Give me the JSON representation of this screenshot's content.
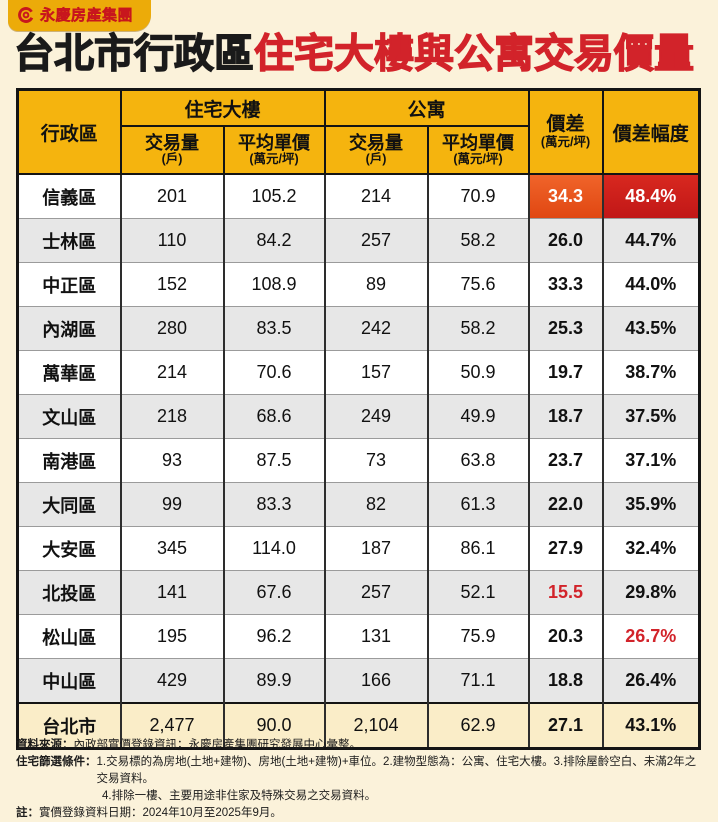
{
  "brand": {
    "logo_text": "永慶房產集團"
  },
  "title": {
    "black_part": "台北市行政區",
    "red_part": "住宅大樓與公寓交易價量"
  },
  "table": {
    "col_headers": {
      "district": "行政區",
      "building_group": "住宅大樓",
      "apartment_group": "公寓",
      "volume_label": "交易量",
      "volume_unit": "(戶)",
      "price_label": "平均單價",
      "price_unit": "(萬元/坪)",
      "diff_label": "價差",
      "diff_unit": "(萬元/坪)",
      "diff_pct_label": "價差幅度"
    },
    "rows": [
      {
        "district": "信義區",
        "building_volume": "201",
        "building_price": "105.2",
        "apartment_volume": "214",
        "apartment_price": "70.9",
        "price_diff": "34.3",
        "diff_pct": "48.4%",
        "diff_highlight": "orange-bg",
        "pct_highlight": "red-bg"
      },
      {
        "district": "士林區",
        "building_volume": "110",
        "building_price": "84.2",
        "apartment_volume": "257",
        "apartment_price": "58.2",
        "price_diff": "26.0",
        "diff_pct": "44.7%"
      },
      {
        "district": "中正區",
        "building_volume": "152",
        "building_price": "108.9",
        "apartment_volume": "89",
        "apartment_price": "75.6",
        "price_diff": "33.3",
        "diff_pct": "44.0%"
      },
      {
        "district": "內湖區",
        "building_volume": "280",
        "building_price": "83.5",
        "apartment_volume": "242",
        "apartment_price": "58.2",
        "price_diff": "25.3",
        "diff_pct": "43.5%"
      },
      {
        "district": "萬華區",
        "building_volume": "214",
        "building_price": "70.6",
        "apartment_volume": "157",
        "apartment_price": "50.9",
        "price_diff": "19.7",
        "diff_pct": "38.7%"
      },
      {
        "district": "文山區",
        "building_volume": "218",
        "building_price": "68.6",
        "apartment_volume": "249",
        "apartment_price": "49.9",
        "price_diff": "18.7",
        "diff_pct": "37.5%"
      },
      {
        "district": "南港區",
        "building_volume": "93",
        "building_price": "87.5",
        "apartment_volume": "73",
        "apartment_price": "63.8",
        "price_diff": "23.7",
        "diff_pct": "37.1%"
      },
      {
        "district": "大同區",
        "building_volume": "99",
        "building_price": "83.3",
        "apartment_volume": "82",
        "apartment_price": "61.3",
        "price_diff": "22.0",
        "diff_pct": "35.9%"
      },
      {
        "district": "大安區",
        "building_volume": "345",
        "building_price": "114.0",
        "apartment_volume": "187",
        "apartment_price": "86.1",
        "price_diff": "27.9",
        "diff_pct": "32.4%"
      },
      {
        "district": "北投區",
        "building_volume": "141",
        "building_price": "67.6",
        "apartment_volume": "257",
        "apartment_price": "52.1",
        "price_diff": "15.5",
        "diff_pct": "29.8%",
        "diff_highlight": "red-text"
      },
      {
        "district": "松山區",
        "building_volume": "195",
        "building_price": "96.2",
        "apartment_volume": "131",
        "apartment_price": "75.9",
        "price_diff": "20.3",
        "diff_pct": "26.7%",
        "pct_highlight": "red-text"
      },
      {
        "district": "中山區",
        "building_volume": "429",
        "building_price": "89.9",
        "apartment_volume": "166",
        "apartment_price": "71.1",
        "price_diff": "18.8",
        "diff_pct": "26.4%"
      },
      {
        "district": "台北市",
        "building_volume": "2,477",
        "building_price": "90.0",
        "apartment_volume": "2,104",
        "apartment_price": "62.9",
        "price_diff": "27.1",
        "diff_pct": "43.1%",
        "is_total": true
      }
    ]
  },
  "notes": [
    {
      "label": "資料來源：",
      "text": "內政部實價登錄資訊；永慶房產集團研究發展中心彙整。"
    },
    {
      "label": "住宅篩選條件：",
      "text": "1.交易標的為房地(土地+建物)、房地(土地+建物)+車位。2.建物型態為：公寓、住宅大樓。3.排除屋齡空白、未滿2年之交易資料。"
    },
    {
      "label": "",
      "text": "4.排除一樓、主要用途非住家及特殊交易之交易資料。",
      "indent": true
    },
    {
      "label": "註：",
      "text": "實價登錄資料日期：2024年10月至2025年9月。"
    }
  ],
  "colors": {
    "page_bg": "#FBF2DA",
    "header_yellow": "#F5B40E",
    "badge_gold": "#ECAB09",
    "title_red": "#D2232A",
    "brand_red": "#C8161D",
    "highlight_orange": "#E8551F",
    "highlight_red": "#CC1D1B",
    "row_gray": "#E7E7E7",
    "total_row_bg": "#FAEDC8"
  },
  "chart_data": {
    "type": "table",
    "title": "台北市行政區住宅大樓與公寓交易價量",
    "columns": [
      "行政區",
      "住宅大樓 交易量(戶)",
      "住宅大樓 平均單價(萬元/坪)",
      "公寓 交易量(戶)",
      "公寓 平均單價(萬元/坪)",
      "價差(萬元/坪)",
      "價差幅度"
    ],
    "rows": [
      [
        "信義區",
        201,
        105.2,
        214,
        70.9,
        34.3,
        "48.4%"
      ],
      [
        "士林區",
        110,
        84.2,
        257,
        58.2,
        26.0,
        "44.7%"
      ],
      [
        "中正區",
        152,
        108.9,
        89,
        75.6,
        33.3,
        "44.0%"
      ],
      [
        "內湖區",
        280,
        83.5,
        242,
        58.2,
        25.3,
        "43.5%"
      ],
      [
        "萬華區",
        214,
        70.6,
        157,
        50.9,
        19.7,
        "38.7%"
      ],
      [
        "文山區",
        218,
        68.6,
        249,
        49.9,
        18.7,
        "37.5%"
      ],
      [
        "南港區",
        93,
        87.5,
        73,
        63.8,
        23.7,
        "37.1%"
      ],
      [
        "大同區",
        99,
        83.3,
        82,
        61.3,
        22.0,
        "35.9%"
      ],
      [
        "大安區",
        345,
        114.0,
        187,
        86.1,
        27.9,
        "32.4%"
      ],
      [
        "北投區",
        141,
        67.6,
        257,
        52.1,
        15.5,
        "29.8%"
      ],
      [
        "松山區",
        195,
        96.2,
        131,
        75.9,
        20.3,
        "26.7%"
      ],
      [
        "中山區",
        429,
        89.9,
        166,
        71.1,
        18.8,
        "26.4%"
      ],
      [
        "台北市",
        2477,
        90.0,
        2104,
        62.9,
        27.1,
        "43.1%"
      ]
    ],
    "annotations": {
      "max_diff_highlight": "信義區 價差34.3、價差幅度48.4% 以橘/紅底白字強調",
      "min_diff_red_text": "北投區 價差15.5 紅字",
      "min_pct_red_text": "松山區 價差幅度26.7% 紅字"
    }
  }
}
